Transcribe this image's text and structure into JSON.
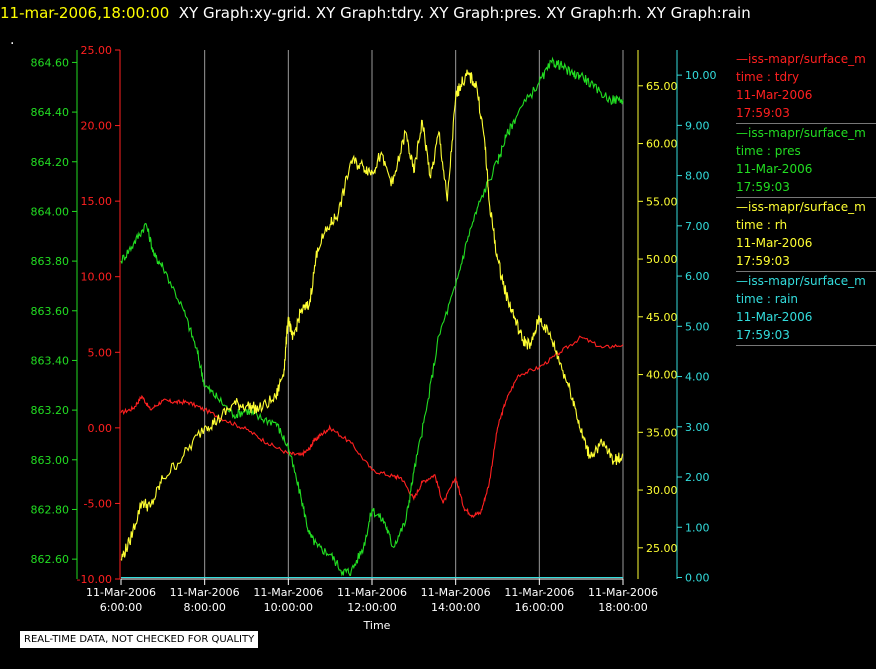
{
  "header": {
    "timestamp": "11-mar-2006,18:00:00",
    "graphs": "XY Graph:xy-grid.  XY Graph:tdry.  XY Graph:pres.  XY Graph:rh.  XY Graph:rain",
    "marker": "."
  },
  "footer_note": "REAL-TIME DATA, NOT CHECKED FOR QUALITY",
  "legend": [
    {
      "source": "—iss-mapr/surface_m",
      "var": "time : tdry",
      "date": "11-Mar-2006",
      "time": "17:59:03",
      "color": "#ff2020"
    },
    {
      "source": "—iss-mapr/surface_m",
      "var": "time : pres",
      "date": "11-Mar-2006",
      "time": "17:59:03",
      "color": "#22dd22"
    },
    {
      "source": "—iss-mapr/surface_m",
      "var": "time : rh",
      "date": "11-Mar-2006",
      "time": "17:59:03",
      "color": "#ffff33"
    },
    {
      "source": "—iss-mapr/surface_m",
      "var": "time : rain",
      "date": "11-Mar-2006",
      "time": "17:59:03",
      "color": "#33dddd"
    }
  ],
  "chart_data": {
    "type": "line",
    "xlabel": "Time",
    "x_ticks": [
      {
        "date": "11-Mar-2006",
        "time": "6:00:00",
        "hour": 6
      },
      {
        "date": "11-Mar-2006",
        "time": "8:00:00",
        "hour": 8
      },
      {
        "date": "11-Mar-2006",
        "time": "10:00:00",
        "hour": 10
      },
      {
        "date": "11-Mar-2006",
        "time": "12:00:00",
        "hour": 12
      },
      {
        "date": "11-Mar-2006",
        "time": "14:00:00",
        "hour": 14
      },
      {
        "date": "11-Mar-2006",
        "time": "16:00:00",
        "hour": 16
      },
      {
        "date": "11-Mar-2006",
        "time": "18:00:00",
        "hour": 18
      }
    ],
    "xlim": [
      6,
      18
    ],
    "grid": "vertical",
    "axes": [
      {
        "id": "pres",
        "color": "#22dd22",
        "ylim": [
          862.52,
          864.65
        ],
        "ticks": [
          "862.60",
          "862.80",
          "863.00",
          "863.20",
          "863.40",
          "863.60",
          "863.80",
          "864.00",
          "864.20",
          "864.40",
          "864.60"
        ]
      },
      {
        "id": "tdry",
        "color": "#ff2020",
        "ylim": [
          -10,
          25
        ],
        "ticks": [
          "-10.00",
          "-5.00",
          "0.00",
          "5.00",
          "10.00",
          "15.00",
          "20.00",
          "25.00"
        ]
      },
      {
        "id": "rh",
        "color": "#ffff33",
        "ylim": [
          22.3,
          68.1
        ],
        "ticks": [
          "25.00",
          "30.00",
          "35.00",
          "40.00",
          "45.00",
          "50.00",
          "55.00",
          "60.00",
          "65.00"
        ]
      },
      {
        "id": "rain",
        "color": "#33dddd",
        "ylim": [
          -0.03,
          10.5
        ],
        "ticks": [
          "0.00",
          "1.00",
          "2.00",
          "3.00",
          "4.00",
          "5.00",
          "6.00",
          "7.00",
          "8.00",
          "9.00",
          "10.00"
        ]
      }
    ],
    "series": [
      {
        "name": "time : tdry",
        "axis": "tdry",
        "color": "#ff2020",
        "x": [
          6,
          6.3,
          6.5,
          6.7,
          7,
          7.3,
          7.6,
          8,
          8.5,
          9,
          9.5,
          10,
          10.3,
          10.5,
          10.6,
          10.8,
          11,
          11.5,
          12,
          12.5,
          12.7,
          13,
          13.2,
          13.5,
          13.7,
          14,
          14.2,
          14.4,
          14.6,
          14.8,
          15,
          15.2,
          15.5,
          16,
          16.5,
          17,
          17.5,
          18
        ],
        "y": [
          1,
          1.3,
          2.1,
          1.2,
          1.8,
          1.7,
          1.7,
          1.2,
          0.5,
          -0.1,
          -1,
          -1.7,
          -1.8,
          -1.4,
          -0.9,
          -0.4,
          0,
          -1,
          -2.8,
          -3.2,
          -3.3,
          -4.7,
          -3.6,
          -3.1,
          -5,
          -3.3,
          -5.3,
          -5.8,
          -5.6,
          -3.7,
          0,
          1.8,
          3.5,
          4,
          5,
          6,
          5.3,
          5.5
        ]
      },
      {
        "name": "time : pres",
        "axis": "pres",
        "color": "#22dd22",
        "x": [
          6,
          6.3,
          6.6,
          6.8,
          7,
          7.5,
          7.8,
          8,
          8.3,
          8.7,
          9,
          9.3,
          9.7,
          10,
          10.3,
          10.5,
          10.7,
          11,
          11.3,
          11.5,
          11.8,
          12,
          12.3,
          12.5,
          12.8,
          13,
          13.3,
          13.6,
          14,
          14.3,
          14.6,
          15,
          15.2,
          15.5,
          16,
          16.3,
          16.5,
          16.8,
          17,
          17.3,
          17.7,
          18
        ],
        "y": [
          863.8,
          863.87,
          863.95,
          863.82,
          863.78,
          863.6,
          863.45,
          863.3,
          863.25,
          863.18,
          863.2,
          863.17,
          863.15,
          863.05,
          862.85,
          862.7,
          862.65,
          862.62,
          862.55,
          862.55,
          862.65,
          862.8,
          862.75,
          862.65,
          862.75,
          862.95,
          863.2,
          863.5,
          863.7,
          863.9,
          864.05,
          864.2,
          864.3,
          864.4,
          864.52,
          864.6,
          864.59,
          864.55,
          864.55,
          864.5,
          864.45,
          864.45
        ]
      },
      {
        "name": "time : rh",
        "axis": "rh",
        "color": "#ffff33",
        "x": [
          6,
          6.2,
          6.5,
          6.7,
          7,
          7.5,
          8,
          8.3,
          8.7,
          9,
          9.3,
          9.7,
          9.9,
          10,
          10.1,
          10.3,
          10.5,
          10.7,
          11,
          11.2,
          11.5,
          11.8,
          12,
          12.2,
          12.5,
          12.8,
          13,
          13.2,
          13.4,
          13.6,
          13.8,
          14,
          14.1,
          14.3,
          14.5,
          14.7,
          14.8,
          15,
          15.2,
          15.4,
          15.6,
          15.8,
          16,
          16.3,
          16.5,
          16.8,
          17,
          17.2,
          17.5,
          17.8,
          18
        ],
        "y": [
          24,
          25.5,
          29,
          28.5,
          31,
          33,
          35.5,
          36,
          37.5,
          37.3,
          37,
          38,
          40.5,
          45,
          43,
          45.5,
          46,
          51,
          53,
          54,
          58.5,
          58,
          57.5,
          59,
          56.5,
          61,
          57.5,
          62,
          57,
          61,
          55,
          64,
          65,
          66,
          65,
          60,
          55,
          50,
          47,
          45,
          43,
          42.5,
          45,
          43,
          41,
          38,
          35,
          33,
          34,
          32.5,
          33
        ]
      },
      {
        "name": "time : rain",
        "axis": "rain",
        "color": "#33dddd",
        "x": [
          6,
          18
        ],
        "y": [
          0,
          0
        ]
      }
    ]
  }
}
